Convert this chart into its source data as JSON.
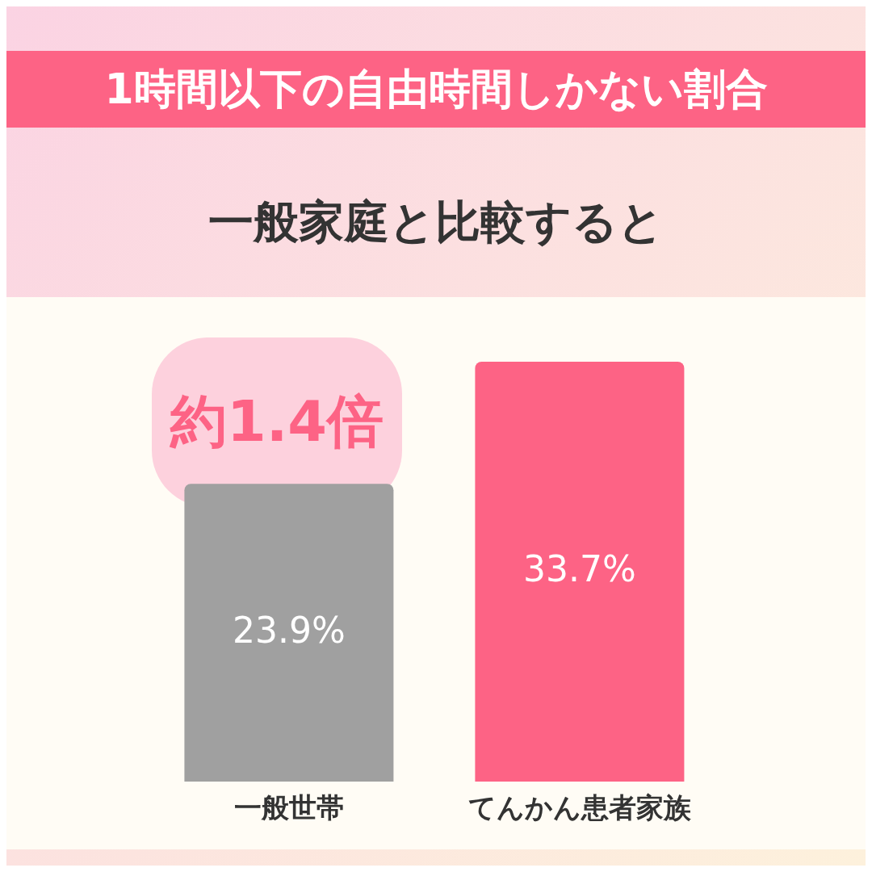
{
  "chart_data": {
    "type": "bar",
    "title": "1時間以下の自由時間しかない割合",
    "subtitle": "一般家庭と比較すると",
    "annotations": [
      "約1.4倍"
    ],
    "categories": [
      "一般世帯",
      "てんかん患者家族"
    ],
    "values": [
      23.9,
      33.7
    ],
    "colors": [
      "#a0a0a0",
      "#fd6385"
    ],
    "value_labels": [
      "23.9%",
      "33.7%"
    ]
  }
}
